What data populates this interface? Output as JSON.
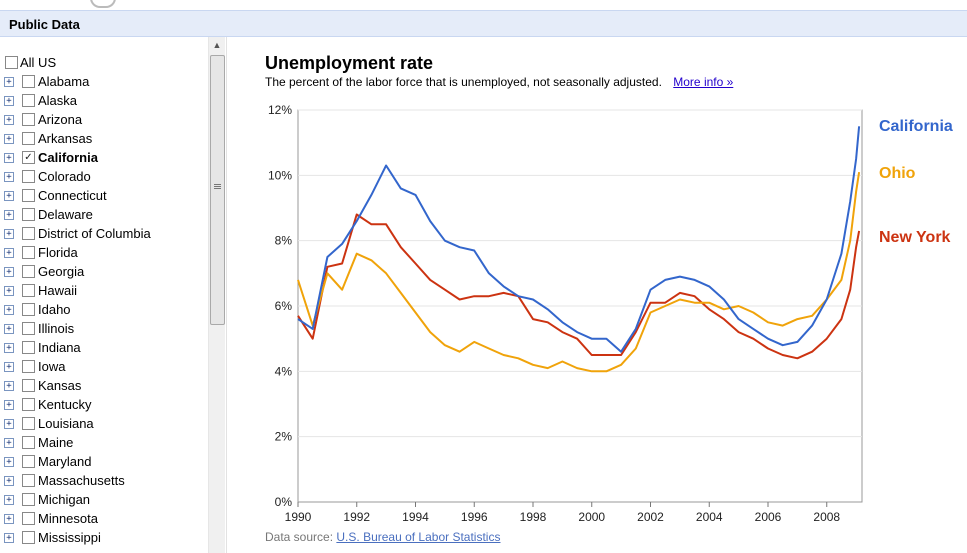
{
  "header": {
    "title": "Public Data"
  },
  "sidebar": {
    "all_label": "All US",
    "items": [
      {
        "label": "Alabama",
        "checked": false
      },
      {
        "label": "Alaska",
        "checked": false
      },
      {
        "label": "Arizona",
        "checked": false
      },
      {
        "label": "Arkansas",
        "checked": false
      },
      {
        "label": "California",
        "checked": true
      },
      {
        "label": "Colorado",
        "checked": false
      },
      {
        "label": "Connecticut",
        "checked": false
      },
      {
        "label": "Delaware",
        "checked": false
      },
      {
        "label": "District of Columbia",
        "checked": false
      },
      {
        "label": "Florida",
        "checked": false
      },
      {
        "label": "Georgia",
        "checked": false
      },
      {
        "label": "Hawaii",
        "checked": false
      },
      {
        "label": "Idaho",
        "checked": false
      },
      {
        "label": "Illinois",
        "checked": false
      },
      {
        "label": "Indiana",
        "checked": false
      },
      {
        "label": "Iowa",
        "checked": false
      },
      {
        "label": "Kansas",
        "checked": false
      },
      {
        "label": "Kentucky",
        "checked": false
      },
      {
        "label": "Louisiana",
        "checked": false
      },
      {
        "label": "Maine",
        "checked": false
      },
      {
        "label": "Maryland",
        "checked": false
      },
      {
        "label": "Massachusetts",
        "checked": false
      },
      {
        "label": "Michigan",
        "checked": false
      },
      {
        "label": "Minnesota",
        "checked": false
      },
      {
        "label": "Mississippi",
        "checked": false
      }
    ]
  },
  "main": {
    "title": "Unemployment rate",
    "subtitle": "The percent of the labor force that is unemployed, not seasonally adjusted.",
    "more_info": "More info »",
    "source_prefix": "Data source:",
    "source_link": "U.S. Bureau of Labor Statistics"
  },
  "colors": {
    "california": "#3366cc",
    "ohio": "#f0a30a",
    "new_york": "#cc3311"
  },
  "chart_data": {
    "type": "line",
    "x_label_unit": "year",
    "xlim": [
      1990,
      2009.2
    ],
    "ylim": [
      0,
      12
    ],
    "x_ticks": [
      1990,
      1992,
      1994,
      1996,
      1998,
      2000,
      2002,
      2004,
      2006,
      2008
    ],
    "x_tick_labels": [
      "1990",
      "1992",
      "1994",
      "1996",
      "1998",
      "2000",
      "2002",
      "2004",
      "2006",
      "2008"
    ],
    "y_ticks": [
      0,
      2,
      4,
      6,
      8,
      10,
      12
    ],
    "y_tick_labels": [
      "0%",
      "2%",
      "4%",
      "6%",
      "8%",
      "10%",
      "12%"
    ],
    "grid": true,
    "legend": "right, labels at line ends",
    "series": [
      {
        "name": "California",
        "color": "#3366cc",
        "points": [
          [
            1990,
            5.6
          ],
          [
            1990.5,
            5.3
          ],
          [
            1991,
            7.5
          ],
          [
            1991.5,
            7.9
          ],
          [
            1992,
            8.6
          ],
          [
            1992.5,
            9.4
          ],
          [
            1993,
            10.3
          ],
          [
            1993.5,
            9.6
          ],
          [
            1994,
            9.4
          ],
          [
            1994.5,
            8.6
          ],
          [
            1995,
            8.0
          ],
          [
            1995.5,
            7.8
          ],
          [
            1996,
            7.7
          ],
          [
            1996.5,
            7.0
          ],
          [
            1997,
            6.6
          ],
          [
            1997.5,
            6.3
          ],
          [
            1998,
            6.2
          ],
          [
            1998.5,
            5.9
          ],
          [
            1999,
            5.5
          ],
          [
            1999.5,
            5.2
          ],
          [
            2000,
            5.0
          ],
          [
            2000.5,
            5.0
          ],
          [
            2001,
            4.6
          ],
          [
            2001.5,
            5.3
          ],
          [
            2002,
            6.5
          ],
          [
            2002.5,
            6.8
          ],
          [
            2003,
            6.9
          ],
          [
            2003.5,
            6.8
          ],
          [
            2004,
            6.6
          ],
          [
            2004.5,
            6.2
          ],
          [
            2005,
            5.6
          ],
          [
            2005.5,
            5.3
          ],
          [
            2006,
            5.0
          ],
          [
            2006.5,
            4.8
          ],
          [
            2007,
            4.9
          ],
          [
            2007.5,
            5.4
          ],
          [
            2008,
            6.2
          ],
          [
            2008.5,
            7.6
          ],
          [
            2008.8,
            9.2
          ],
          [
            2009,
            10.5
          ],
          [
            2009.1,
            11.5
          ]
        ]
      },
      {
        "name": "Ohio",
        "color": "#f0a30a",
        "points": [
          [
            1990,
            6.8
          ],
          [
            1990.5,
            5.4
          ],
          [
            1991,
            7.0
          ],
          [
            1991.5,
            6.5
          ],
          [
            1992,
            7.6
          ],
          [
            1992.5,
            7.4
          ],
          [
            1993,
            7.0
          ],
          [
            1993.5,
            6.4
          ],
          [
            1994,
            5.8
          ],
          [
            1994.5,
            5.2
          ],
          [
            1995,
            4.8
          ],
          [
            1995.5,
            4.6
          ],
          [
            1996,
            4.9
          ],
          [
            1996.5,
            4.7
          ],
          [
            1997,
            4.5
          ],
          [
            1997.5,
            4.4
          ],
          [
            1998,
            4.2
          ],
          [
            1998.5,
            4.1
          ],
          [
            1999,
            4.3
          ],
          [
            1999.5,
            4.1
          ],
          [
            2000,
            4.0
          ],
          [
            2000.5,
            4.0
          ],
          [
            2001,
            4.2
          ],
          [
            2001.5,
            4.7
          ],
          [
            2002,
            5.8
          ],
          [
            2002.5,
            6.0
          ],
          [
            2003,
            6.2
          ],
          [
            2003.5,
            6.1
          ],
          [
            2004,
            6.1
          ],
          [
            2004.5,
            5.9
          ],
          [
            2005,
            6.0
          ],
          [
            2005.5,
            5.8
          ],
          [
            2006,
            5.5
          ],
          [
            2006.5,
            5.4
          ],
          [
            2007,
            5.6
          ],
          [
            2007.5,
            5.7
          ],
          [
            2008,
            6.2
          ],
          [
            2008.5,
            6.8
          ],
          [
            2008.8,
            8.0
          ],
          [
            2009,
            9.5
          ],
          [
            2009.1,
            10.1
          ]
        ]
      },
      {
        "name": "New York",
        "color": "#cc3311",
        "points": [
          [
            1990,
            5.7
          ],
          [
            1990.5,
            5.0
          ],
          [
            1991,
            7.2
          ],
          [
            1991.5,
            7.3
          ],
          [
            1992,
            8.8
          ],
          [
            1992.5,
            8.5
          ],
          [
            1993,
            8.5
          ],
          [
            1993.5,
            7.8
          ],
          [
            1994,
            7.3
          ],
          [
            1994.5,
            6.8
          ],
          [
            1995,
            6.5
          ],
          [
            1995.5,
            6.2
          ],
          [
            1996,
            6.3
          ],
          [
            1996.5,
            6.3
          ],
          [
            1997,
            6.4
          ],
          [
            1997.5,
            6.3
          ],
          [
            1998,
            5.6
          ],
          [
            1998.5,
            5.5
          ],
          [
            1999,
            5.2
          ],
          [
            1999.5,
            5.0
          ],
          [
            2000,
            4.5
          ],
          [
            2000.5,
            4.5
          ],
          [
            2001,
            4.5
          ],
          [
            2001.5,
            5.2
          ],
          [
            2002,
            6.1
          ],
          [
            2002.5,
            6.1
          ],
          [
            2003,
            6.4
          ],
          [
            2003.5,
            6.3
          ],
          [
            2004,
            5.9
          ],
          [
            2004.5,
            5.6
          ],
          [
            2005,
            5.2
          ],
          [
            2005.5,
            5.0
          ],
          [
            2006,
            4.7
          ],
          [
            2006.5,
            4.5
          ],
          [
            2007,
            4.4
          ],
          [
            2007.5,
            4.6
          ],
          [
            2008,
            5.0
          ],
          [
            2008.5,
            5.6
          ],
          [
            2008.8,
            6.5
          ],
          [
            2009,
            7.8
          ],
          [
            2009.1,
            8.3
          ]
        ]
      }
    ]
  }
}
